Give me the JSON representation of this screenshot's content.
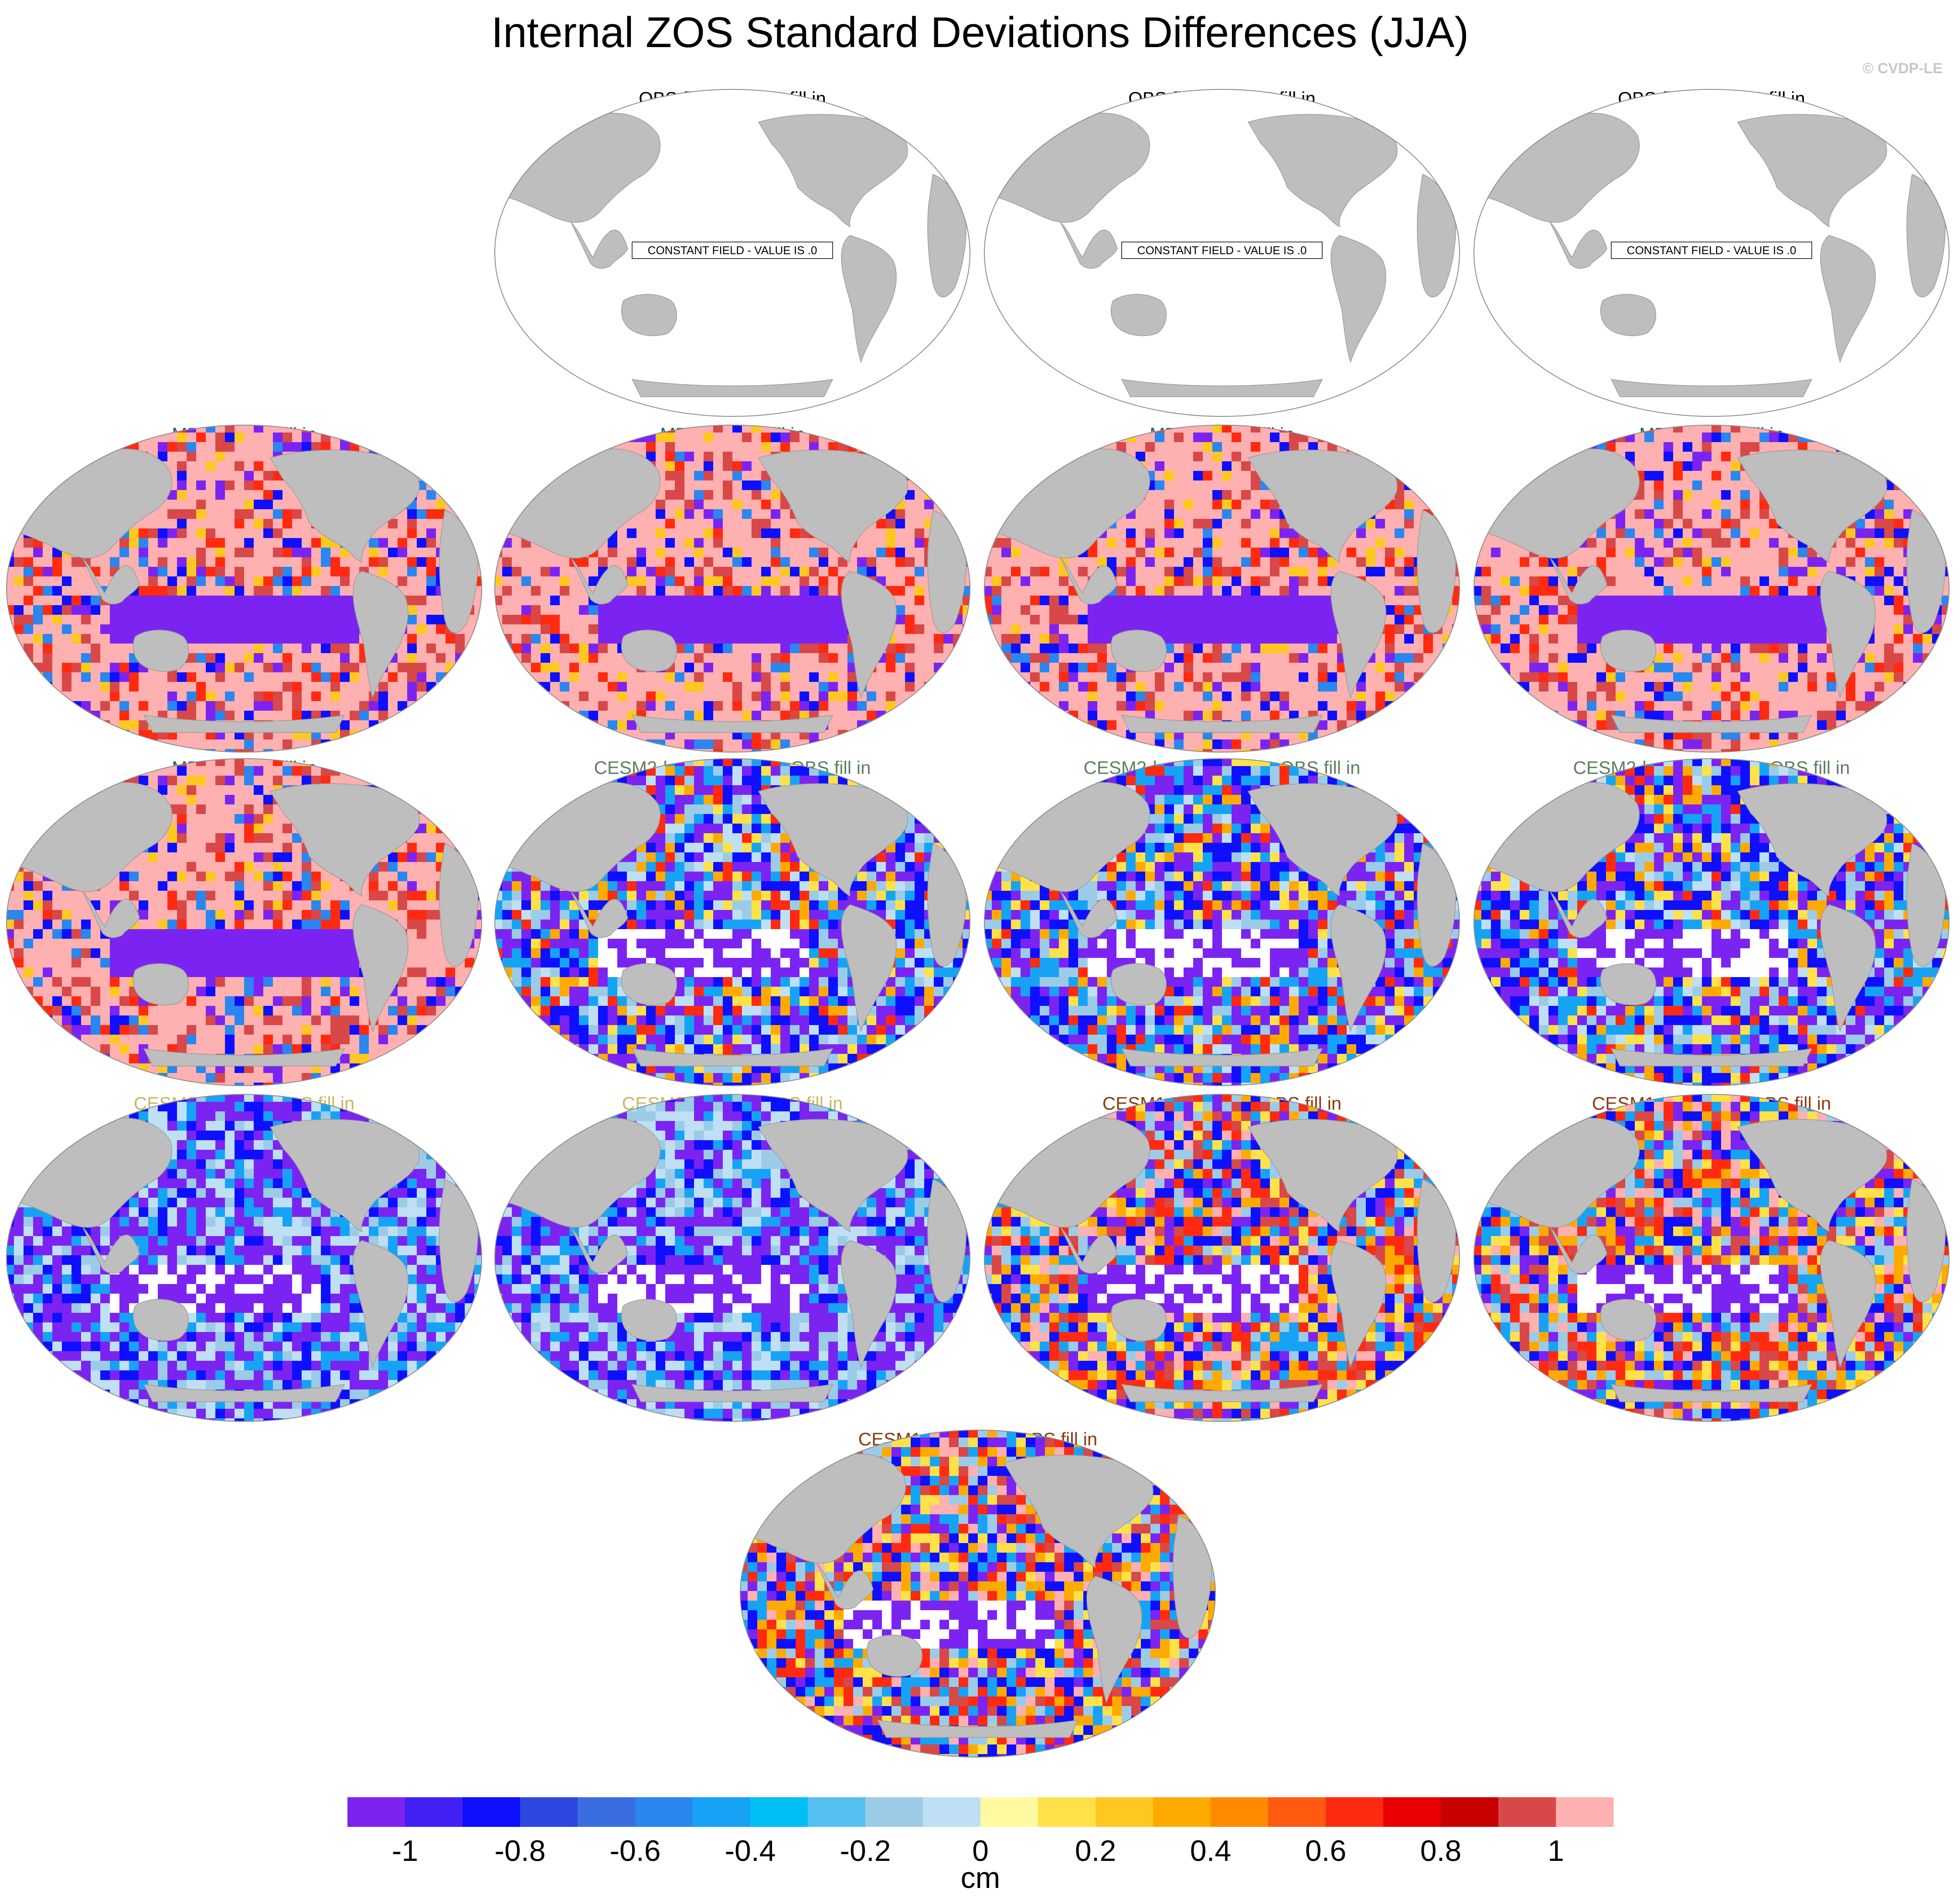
{
  "figure": {
    "title": "Internal ZOS Standard Deviations Differences (JJA)",
    "copyright": "© CVDP-LE"
  },
  "colorbar": {
    "colors": [
      "#7b24f2",
      "#4221f5",
      "#0f0fff",
      "#2d47e0",
      "#3a6ee0",
      "#2a86f0",
      "#17a3f5",
      "#00bff5",
      "#55c0f0",
      "#9ccbe8",
      "#bfe0f4",
      "#fff9a0",
      "#ffe14a",
      "#ffc820",
      "#ffaa00",
      "#ff8a00",
      "#ff5a10",
      "#ff2a10",
      "#e80000",
      "#c80000",
      "#d84848",
      "#ffb0b0"
    ],
    "tick_labels": [
      "-1",
      "-0.8",
      "-0.6",
      "-0.4",
      "-0.2",
      "0",
      "0.2",
      "0.4",
      "0.6",
      "0.8",
      "1"
    ],
    "unit": "cm"
  },
  "constant_field_label": "CONSTANT FIELD - VALUE IS .0",
  "panels": [
    {
      "title": "OBS fill in_1-OBS fill in",
      "title_color": "#000000",
      "pattern": "constant"
    },
    {
      "title": "OBS fill in_2-OBS fill in",
      "title_color": "#000000",
      "pattern": "constant"
    },
    {
      "title": "OBS fill in_3-OBS fill in",
      "title_color": "#000000",
      "pattern": "constant"
    },
    {
      "title": "MPI #1-OBS fill in",
      "title_color": "#1f5f7a",
      "pattern": "mpi"
    },
    {
      "title": "MPI #2-OBS fill in",
      "title_color": "#1f5f7a",
      "pattern": "mpi"
    },
    {
      "title": "MPI #3-OBS fill in",
      "title_color": "#1f5f7a",
      "pattern": "mpi"
    },
    {
      "title": "MPI #4-OBS fill in",
      "title_color": "#1f5f7a",
      "pattern": "mpi"
    },
    {
      "title": "MPI #5-OBS fill in",
      "title_color": "#1f5f7a",
      "pattern": "mpi"
    },
    {
      "title": "CESM2-hs370 r1i1p1f1-OBS fill in",
      "title_color": "#5f7f5f",
      "pattern": "hs370"
    },
    {
      "title": "CESM2-hs370 r2i1p1f1-OBS fill in",
      "title_color": "#5f7f5f",
      "pattern": "hs370"
    },
    {
      "title": "CESM2-hs370 r3i1p1f1-OBS fill in",
      "title_color": "#5f7f5f",
      "pattern": "hs370"
    },
    {
      "title": "CESM2 r1i1p1f1-OBS fill in",
      "title_color": "#c8b860",
      "pattern": "cesm2"
    },
    {
      "title": "CESM2 r2i1p1f1-OBS fill in",
      "title_color": "#c8b860",
      "pattern": "cesm2"
    },
    {
      "title": "CESM1-LENS 003-OBS fill in",
      "title_color": "#8a3a10",
      "pattern": "lens"
    },
    {
      "title": "CESM1-LENS 004-OBS fill in",
      "title_color": "#8a3a10",
      "pattern": "lens"
    },
    {
      "title": "CESM1-LENS 005-OBS fill in",
      "title_color": "#8a3a10",
      "pattern": "lens"
    }
  ]
}
